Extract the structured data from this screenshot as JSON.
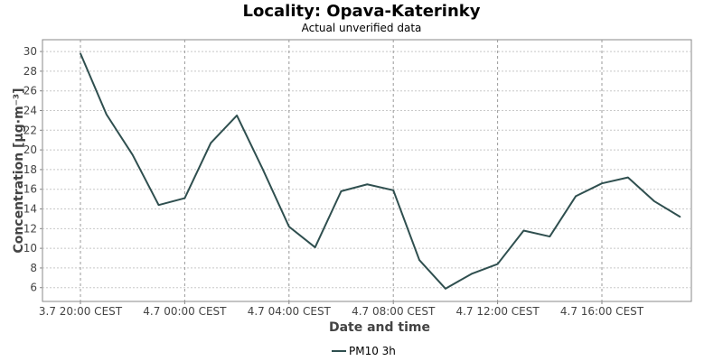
{
  "chart_data": {
    "type": "line",
    "title": "Locality: Opava-Katerinky",
    "subtitle": "Actual unverified data",
    "xlabel": "Date and time",
    "ylabel": "Concentration [μg·m⁻³]",
    "x_start_label": "3.7 20:00 CEST",
    "x_interval_hours": 1,
    "x_ticks": [
      {
        "label": "3.7 20:00 CEST",
        "index": 0
      },
      {
        "label": "4.7 00:00 CEST",
        "index": 4
      },
      {
        "label": "4.7 04:00 CEST",
        "index": 8
      },
      {
        "label": "4.7 08:00 CEST",
        "index": 12
      },
      {
        "label": "4.7 12:00 CEST",
        "index": 16
      },
      {
        "label": "4.7 16:00 CEST",
        "index": 20
      }
    ],
    "ylim": [
      4.6,
      31.2
    ],
    "y_ticks": [
      6,
      8,
      10,
      12,
      14,
      16,
      18,
      20,
      22,
      24,
      26,
      28,
      30
    ],
    "grid": true,
    "legend_position": "bottom",
    "series": [
      {
        "name": "PM10 3h",
        "color": "#2f4f4f",
        "values": [
          29.8,
          23.6,
          19.5,
          14.4,
          15.1,
          20.7,
          23.5,
          18.0,
          12.2,
          10.1,
          15.8,
          16.5,
          15.9,
          8.8,
          5.9,
          7.4,
          8.4,
          11.8,
          11.2,
          15.3,
          16.6,
          17.2,
          14.8,
          13.2
        ]
      }
    ]
  }
}
